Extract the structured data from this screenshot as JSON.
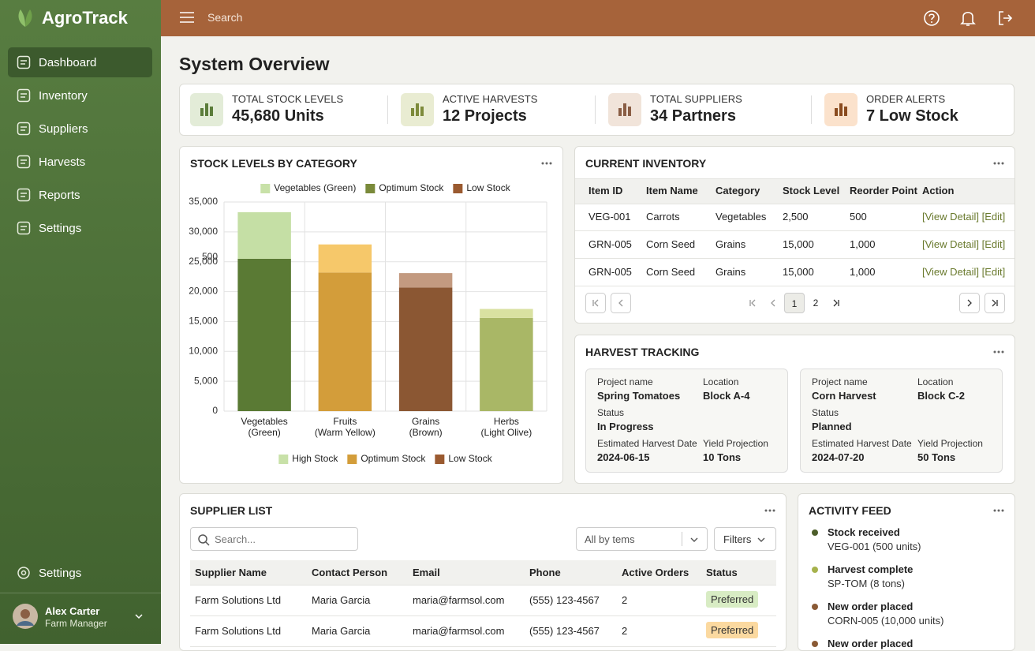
{
  "brand": "AgroTrack",
  "nav": [
    "Dashboard",
    "Inventory",
    "Suppliers",
    "Harvests",
    "Reports",
    "Settings"
  ],
  "nav_bottom": "Settings",
  "user": {
    "name": "Alex Carter",
    "role": "Farm Manager"
  },
  "topbar": {
    "search": "Search"
  },
  "page_title": "System Overview",
  "kpis": [
    {
      "label": "TOTAL STOCK LEVELS",
      "value": "45,680 Units"
    },
    {
      "label": "ACTIVE HARVESTS",
      "value": "12 Projects"
    },
    {
      "label": "TOTAL SUPPLIERS",
      "value": "34 Partners"
    },
    {
      "label": "ORDER ALERTS",
      "value": "7 Low Stock"
    }
  ],
  "chart_data": {
    "type": "bar",
    "stacked": true,
    "title": "STOCK LEVELS BY CATEGORY",
    "categories": [
      "Vegetables\n(Green)",
      "Fruits\n(Warm Yellow)",
      "Grains\n(Brown)",
      "Herbs\n(Light Olive)"
    ],
    "series": [
      {
        "colors": [
          "#5a7a34",
          "#d39d3a",
          "#8b5733",
          "#a9b766"
        ],
        "values": [
          25500,
          23200,
          20700,
          15600
        ]
      },
      {
        "colors": [
          "#c5dfa5",
          "#f6c86a",
          "#c39a80",
          "#d9e1a1"
        ],
        "values": [
          7800,
          4700,
          2400,
          1500
        ]
      }
    ],
    "ylim": [
      0,
      35000
    ],
    "yticks": [
      0,
      {
        "value": 5000,
        "label": "5,000"
      },
      {
        "value": 10000,
        "label": "10,000"
      },
      {
        "value": 15000,
        "label": "15,000"
      },
      {
        "value": 20000,
        "label": "20,000"
      },
      {
        "value": 25000,
        "label": "25,000"
      },
      {
        "value": 30000,
        "label": "30,000"
      },
      {
        "value": 35000,
        "label": "35,000"
      }
    ],
    "annotation": "500",
    "grid": true,
    "legend_top": [
      {
        "label": "Vegetables (Green)",
        "color": "#c8e1a8"
      },
      {
        "label": "Optimum Stock",
        "color": "#7a8a3a"
      },
      {
        "label": "Low Stock",
        "color": "#9a5a30"
      }
    ],
    "legend_bottom": [
      {
        "label": "High Stock",
        "color": "#c8e1a8"
      },
      {
        "label": "Optimum Stock",
        "color": "#d39d3a"
      },
      {
        "label": "Low Stock",
        "color": "#9a5a30"
      }
    ]
  },
  "inventory": {
    "title": "CURRENT INVENTORY",
    "columns": [
      "Item ID",
      "Item Name",
      "Category",
      "Stock Level",
      "Reorder Point",
      "Action"
    ],
    "rows": [
      [
        "VEG-001",
        "Carrots",
        "Vegetables",
        "2,500",
        "500",
        "[View Detail]",
        "[Edit]"
      ],
      [
        "GRN-005",
        "Corn Seed",
        "Grains",
        "15,000",
        "1,000",
        "[View Detail]",
        "[Edit]"
      ],
      [
        "GRN-005",
        "Corn Seed",
        "Grains",
        "15,000",
        "1,000",
        "[View Detail]",
        "[Edit]"
      ]
    ],
    "pages": [
      "1",
      "2"
    ]
  },
  "harvest": {
    "title": "HARVEST TRACKING",
    "projects": [
      {
        "fields": [
          {
            "label": "Project name",
            "value": "Spring Tomatoes"
          },
          {
            "label": "Location",
            "value": "Block A-4"
          },
          {
            "label": "Status",
            "value": "In Progress"
          },
          {
            "label": "Estimated Harvest Date",
            "value": "2024-06-15"
          },
          {
            "label": "Yield Projection",
            "value": "10 Tons"
          }
        ]
      },
      {
        "fields": [
          {
            "label": "Project name",
            "value": "Corn Harvest"
          },
          {
            "label": "Location",
            "value": "Block C-2"
          },
          {
            "label": "Status",
            "value": "Planned"
          },
          {
            "label": "Estimated Harvest Date",
            "value": "2024-07-20"
          },
          {
            "label": "Yield Projection",
            "value": "50 Tons"
          }
        ]
      }
    ]
  },
  "suppliers": {
    "title": "SUPPLIER LIST",
    "search_placeholder": "Search...",
    "select": "All by tems",
    "filters": "Filters",
    "columns": [
      "Supplier Name",
      "Contact Person",
      "Email",
      "Phone",
      "Active Orders",
      "Status"
    ],
    "rows": [
      [
        "Farm Solutions Ltd",
        "Maria Garcia",
        "maria@farmsol.com",
        "(555) 123-4567",
        "2",
        "Preferred"
      ],
      [
        "Farm Solutions Ltd",
        "Maria Garcia",
        "maria@farmsol.com",
        "(555) 123-4567",
        "2",
        "Preferred"
      ]
    ],
    "status_colors": [
      "#d8ecc4",
      "#fbd9a0"
    ]
  },
  "activity": {
    "title": "ACTIVITY FEED",
    "items": [
      {
        "title": "Stock received",
        "detail": "VEG-001 (500 units)",
        "color": "#4d5e2a"
      },
      {
        "title": "Harvest complete",
        "detail": "SP-TOM (8 tons)",
        "color": "#a6b24c"
      },
      {
        "title": "New order placed",
        "detail": "CORN-005 (10,000 units)",
        "color": "#8a5a35"
      },
      {
        "title": "New order placed",
        "color": "#8a5a35"
      }
    ]
  }
}
